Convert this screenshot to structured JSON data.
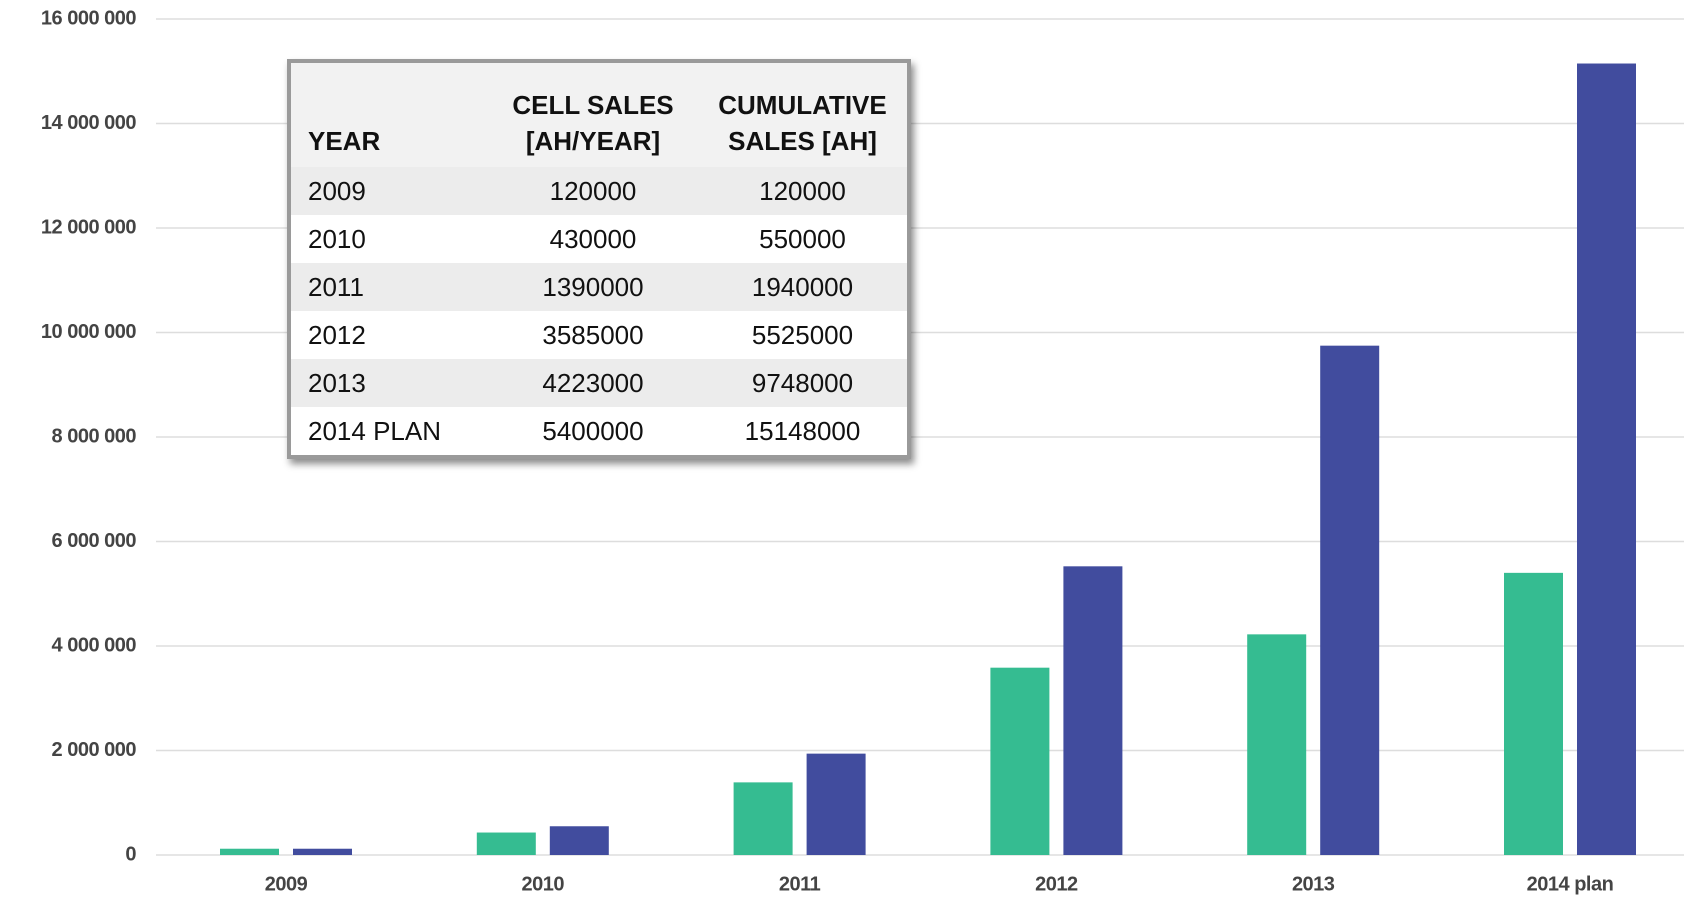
{
  "chart_data": {
    "type": "bar",
    "categories": [
      "2009",
      "2010",
      "2011",
      "2012",
      "2013",
      "2014 plan"
    ],
    "series": [
      {
        "color": "#35bc91",
        "values": [
          120000,
          430000,
          1390000,
          3585000,
          4223000,
          5400000
        ]
      },
      {
        "color": "#414c9e",
        "values": [
          120000,
          550000,
          1940000,
          5525000,
          9748000,
          15148000
        ]
      }
    ],
    "ylim": [
      0,
      16000000
    ],
    "yticks": [
      0,
      {
        "value": 2000000,
        "label": "2 000 000"
      },
      {
        "value": 4000000,
        "label": "4 000 000"
      },
      {
        "value": 6000000,
        "label": "6 000 000"
      },
      {
        "value": 8000000,
        "label": "8 000 000"
      },
      {
        "value": 10000000,
        "label": "10 000 000"
      },
      {
        "value": 12000000,
        "label": "12 000 000"
      },
      {
        "value": 14000000,
        "label": "14 000 000"
      },
      {
        "value": 16000000,
        "label": "16 000 000"
      }
    ],
    "grid": true,
    "table": {
      "header": [
        "YEAR",
        "CELL SALES [AH/YEAR]",
        "CUMULATIVE SALES [AH]"
      ],
      "rows": [
        [
          "2009",
          120000,
          120000
        ],
        [
          "2010",
          430000,
          550000
        ],
        [
          "2011",
          1390000,
          1940000
        ],
        [
          "2012",
          3585000,
          5525000
        ],
        [
          "2013",
          4223000,
          9748000
        ],
        [
          "2014 PLAN",
          5400000,
          15148000
        ]
      ]
    }
  }
}
